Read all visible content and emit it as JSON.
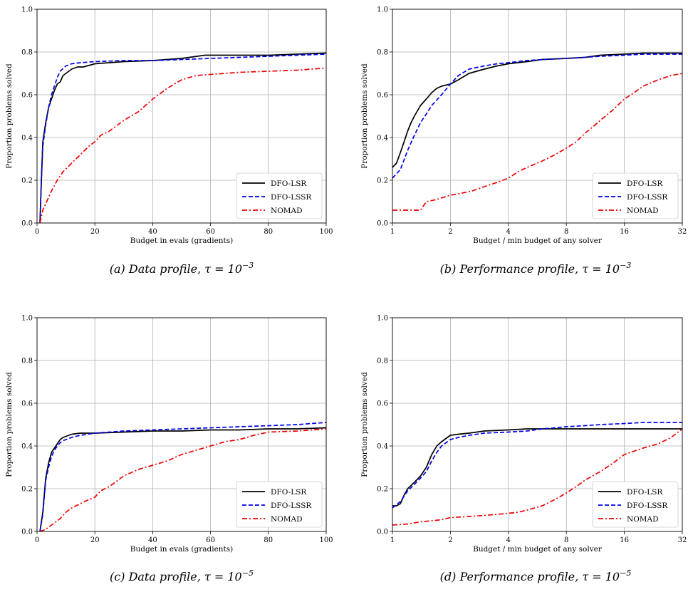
{
  "legend": {
    "entries": [
      "DFO-LSR",
      "DFO-LSSR",
      "NOMAD"
    ]
  },
  "series_style": {
    "DFO-LSR": {
      "color": "#000000",
      "dash": "solid"
    },
    "DFO-LSSR": {
      "color": "#0000ee",
      "dash": "dashed"
    },
    "NOMAD": {
      "color": "#ee0000",
      "dash": "dash-dot"
    }
  },
  "chart_data": [
    {
      "type": "line",
      "caption": "(a) Data profile, τ = 10",
      "caption_exp": "−3",
      "xlabel": "Budget in evals (gradients)",
      "ylabel": "Proportion problems solved",
      "xscale": "linear",
      "xlim": [
        0,
        100
      ],
      "ylim": [
        0,
        1
      ],
      "xticks": [
        "0",
        "20",
        "40",
        "60",
        "80",
        "100"
      ],
      "yticks": [
        "0.0",
        "0.2",
        "0.4",
        "0.6",
        "0.8",
        "1.0"
      ],
      "grid": true,
      "legend_position": "lower-right",
      "series": [
        {
          "name": "DFO-LSR",
          "x": [
            1,
            1.5,
            2,
            3,
            4,
            5,
            6,
            7,
            8,
            9,
            10,
            12,
            14,
            16,
            20,
            25,
            30,
            40,
            50,
            58,
            60,
            70,
            80,
            90,
            100
          ],
          "y": [
            0,
            0.2,
            0.38,
            0.47,
            0.54,
            0.58,
            0.62,
            0.65,
            0.66,
            0.69,
            0.7,
            0.72,
            0.73,
            0.73,
            0.745,
            0.75,
            0.755,
            0.76,
            0.77,
            0.785,
            0.785,
            0.785,
            0.785,
            0.79,
            0.795
          ]
        },
        {
          "name": "DFO-LSSR",
          "x": [
            1,
            1.5,
            2,
            3,
            4,
            5,
            6,
            7,
            8,
            10,
            12,
            15,
            20,
            30,
            40,
            50,
            60,
            70,
            80,
            90,
            100
          ],
          "y": [
            0,
            0.2,
            0.36,
            0.46,
            0.54,
            0.6,
            0.64,
            0.68,
            0.71,
            0.735,
            0.745,
            0.75,
            0.755,
            0.76,
            0.76,
            0.765,
            0.77,
            0.775,
            0.78,
            0.785,
            0.79
          ]
        },
        {
          "name": "NOMAD",
          "x": [
            1,
            2,
            3,
            5,
            7,
            9,
            12,
            15,
            18,
            20,
            22,
            25,
            28,
            30,
            35,
            40,
            45,
            50,
            55,
            60,
            70,
            80,
            90,
            100
          ],
          "y": [
            0.0,
            0.06,
            0.09,
            0.15,
            0.2,
            0.24,
            0.28,
            0.32,
            0.36,
            0.38,
            0.41,
            0.43,
            0.46,
            0.48,
            0.52,
            0.58,
            0.63,
            0.67,
            0.69,
            0.695,
            0.705,
            0.71,
            0.715,
            0.725
          ]
        }
      ]
    },
    {
      "type": "line",
      "caption": "(b) Performance profile, τ = 10",
      "caption_exp": "−3",
      "xlabel": "Budget / min budget of any solver",
      "ylabel": "Proportion problems solved",
      "xscale": "log2",
      "xlim": [
        1,
        32
      ],
      "ylim": [
        0,
        1
      ],
      "xticks": [
        "1",
        "2",
        "4",
        "8",
        "16",
        "32"
      ],
      "yticks": [
        "0.0",
        "0.2",
        "0.4",
        "0.6",
        "0.8",
        "1.0"
      ],
      "grid": true,
      "legend_position": "lower-right",
      "series": [
        {
          "name": "DFO-LSR",
          "x": [
            1,
            1.05,
            1.1,
            1.15,
            1.2,
            1.25,
            1.3,
            1.4,
            1.5,
            1.6,
            1.7,
            1.8,
            2,
            2.2,
            2.5,
            3,
            3.5,
            4,
            5,
            6,
            8,
            10,
            12,
            16,
            20,
            25,
            32
          ],
          "y": [
            0.26,
            0.28,
            0.33,
            0.38,
            0.43,
            0.47,
            0.5,
            0.55,
            0.58,
            0.61,
            0.63,
            0.64,
            0.65,
            0.67,
            0.7,
            0.72,
            0.735,
            0.745,
            0.755,
            0.765,
            0.77,
            0.775,
            0.785,
            0.79,
            0.795,
            0.795,
            0.795
          ]
        },
        {
          "name": "DFO-LSSR",
          "x": [
            1,
            1.1,
            1.2,
            1.3,
            1.4,
            1.5,
            1.6,
            1.8,
            2,
            2.2,
            2.5,
            3,
            3.5,
            4,
            5,
            6,
            8,
            10,
            12,
            16,
            20,
            25,
            32
          ],
          "y": [
            0.21,
            0.25,
            0.34,
            0.41,
            0.47,
            0.51,
            0.55,
            0.6,
            0.65,
            0.69,
            0.72,
            0.735,
            0.745,
            0.75,
            0.76,
            0.765,
            0.77,
            0.775,
            0.78,
            0.785,
            0.79,
            0.79,
            0.79
          ]
        },
        {
          "name": "NOMAD",
          "x": [
            1,
            1.2,
            1.4,
            1.5,
            1.7,
            2,
            2.3,
            2.6,
            3,
            3.5,
            4,
            4.5,
            5,
            6,
            7,
            8,
            9,
            10,
            11,
            12,
            14,
            16,
            18,
            20,
            24,
            28,
            32
          ],
          "y": [
            0.06,
            0.06,
            0.06,
            0.1,
            0.11,
            0.13,
            0.14,
            0.15,
            0.17,
            0.19,
            0.21,
            0.24,
            0.26,
            0.29,
            0.32,
            0.35,
            0.38,
            0.42,
            0.45,
            0.48,
            0.53,
            0.58,
            0.61,
            0.64,
            0.67,
            0.69,
            0.7
          ]
        }
      ]
    },
    {
      "type": "line",
      "caption": "(c) Data profile, τ = 10",
      "caption_exp": "−5",
      "xlabel": "Budget in evals (gradients)",
      "ylabel": "Proportion problems solved",
      "xscale": "linear",
      "xlim": [
        0,
        100
      ],
      "ylim": [
        0,
        1
      ],
      "xticks": [
        "0",
        "20",
        "40",
        "60",
        "80",
        "100"
      ],
      "yticks": [
        "0.0",
        "0.2",
        "0.4",
        "0.6",
        "0.8",
        "1.0"
      ],
      "grid": true,
      "legend_position": "lower-right",
      "series": [
        {
          "name": "DFO-LSR",
          "x": [
            1,
            2,
            3,
            4,
            5,
            6,
            7,
            8,
            9,
            10,
            12,
            15,
            20,
            30,
            40,
            50,
            60,
            70,
            80,
            90,
            100
          ],
          "y": [
            0,
            0.09,
            0.25,
            0.32,
            0.37,
            0.39,
            0.41,
            0.43,
            0.44,
            0.445,
            0.455,
            0.46,
            0.46,
            0.465,
            0.47,
            0.47,
            0.475,
            0.475,
            0.48,
            0.48,
            0.485
          ]
        },
        {
          "name": "DFO-LSSR",
          "x": [
            1,
            2,
            3,
            4,
            5,
            6,
            7,
            8,
            9,
            10,
            12,
            15,
            20,
            30,
            40,
            50,
            60,
            70,
            80,
            90,
            100
          ],
          "y": [
            0,
            0.08,
            0.24,
            0.3,
            0.35,
            0.38,
            0.4,
            0.415,
            0.425,
            0.43,
            0.44,
            0.45,
            0.46,
            0.47,
            0.475,
            0.48,
            0.485,
            0.49,
            0.495,
            0.5,
            0.51
          ]
        },
        {
          "name": "NOMAD",
          "x": [
            1,
            3,
            5,
            8,
            10,
            12,
            15,
            18,
            20,
            22,
            25,
            28,
            30,
            35,
            40,
            45,
            50,
            55,
            60,
            65,
            70,
            75,
            80,
            90,
            100
          ],
          "y": [
            0,
            0.01,
            0.03,
            0.06,
            0.09,
            0.11,
            0.13,
            0.15,
            0.16,
            0.19,
            0.21,
            0.24,
            0.26,
            0.29,
            0.31,
            0.33,
            0.36,
            0.38,
            0.4,
            0.42,
            0.43,
            0.45,
            0.465,
            0.47,
            0.48
          ]
        }
      ]
    },
    {
      "type": "line",
      "caption": "(d) Performance profile, τ = 10",
      "caption_exp": "−5",
      "xlabel": "Budget / min budget of any solver",
      "ylabel": "Proportion problems solved",
      "xscale": "log2",
      "xlim": [
        1,
        32
      ],
      "ylim": [
        0,
        1
      ],
      "xticks": [
        "1",
        "2",
        "4",
        "8",
        "16",
        "32"
      ],
      "yticks": [
        "0.0",
        "0.2",
        "0.4",
        "0.6",
        "0.8",
        "1.0"
      ],
      "grid": true,
      "legend_position": "lower-right",
      "series": [
        {
          "name": "DFO-LSR",
          "x": [
            1,
            1.05,
            1.1,
            1.15,
            1.2,
            1.3,
            1.4,
            1.5,
            1.6,
            1.7,
            1.8,
            2,
            2.2,
            2.5,
            3,
            4,
            5,
            6,
            8,
            16,
            32
          ],
          "y": [
            0.12,
            0.12,
            0.13,
            0.17,
            0.2,
            0.23,
            0.26,
            0.3,
            0.36,
            0.4,
            0.42,
            0.45,
            0.455,
            0.46,
            0.47,
            0.475,
            0.48,
            0.48,
            0.48,
            0.48,
            0.48
          ]
        },
        {
          "name": "DFO-LSSR",
          "x": [
            1,
            1.1,
            1.2,
            1.3,
            1.4,
            1.5,
            1.6,
            1.7,
            1.8,
            2,
            2.2,
            2.5,
            3,
            4,
            5,
            6,
            7,
            8,
            10,
            12,
            16,
            20,
            32
          ],
          "y": [
            0.11,
            0.14,
            0.19,
            0.22,
            0.25,
            0.28,
            0.33,
            0.37,
            0.4,
            0.43,
            0.44,
            0.45,
            0.46,
            0.465,
            0.47,
            0.48,
            0.485,
            0.49,
            0.495,
            0.5,
            0.505,
            0.51,
            0.51
          ]
        },
        {
          "name": "NOMAD",
          "x": [
            1,
            1.2,
            1.4,
            1.6,
            1.8,
            2,
            2.5,
            3,
            3.5,
            4,
            4.5,
            5,
            6,
            7,
            8,
            9,
            10,
            12,
            14,
            16,
            20,
            24,
            28,
            32
          ],
          "y": [
            0.03,
            0.035,
            0.045,
            0.05,
            0.055,
            0.065,
            0.07,
            0.075,
            0.08,
            0.085,
            0.09,
            0.1,
            0.12,
            0.15,
            0.18,
            0.21,
            0.24,
            0.28,
            0.32,
            0.36,
            0.39,
            0.41,
            0.44,
            0.48
          ]
        }
      ]
    }
  ]
}
